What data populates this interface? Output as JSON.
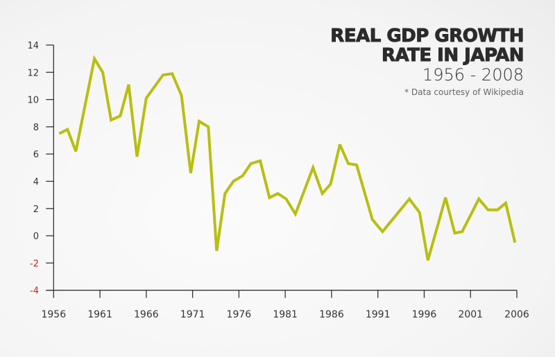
{
  "chart_data": {
    "type": "line",
    "title": "REAL GDP GROWTH RATE IN JAPAN",
    "title_lines": [
      "REAL GDP GROWTH",
      "RATE IN JAPAN"
    ],
    "subtitle": "1956 - 2008",
    "note": "* Data courtesy of Wikipedia",
    "xlabel": "",
    "ylabel": "",
    "xlim": [
      1956,
      2006
    ],
    "ylim": [
      -4,
      14
    ],
    "xticks": [
      1956,
      1961,
      1966,
      1971,
      1976,
      1981,
      1986,
      1991,
      1996,
      2001,
      2006
    ],
    "yticks": [
      14,
      12,
      10,
      8,
      6,
      4,
      2,
      0,
      -2,
      -4
    ],
    "grid": false,
    "colors": {
      "line": "#b7bf10",
      "axis": "#333333",
      "negative_label": "#c8202a",
      "label": "#333333"
    },
    "series": [
      {
        "name": "Real GDP growth rate (%)",
        "x": [
          1956.6,
          1957.5,
          1958.4,
          1960.4,
          1961.3,
          1962.2,
          1963.2,
          1964.1,
          1965.0,
          1966.0,
          1967.8,
          1968.8,
          1969.8,
          1970.8,
          1971.7,
          1972.7,
          1973.6,
          1974.5,
          1975.4,
          1976.4,
          1977.3,
          1978.3,
          1979.3,
          1980.2,
          1981.1,
          1982.1,
          1984.0,
          1985.0,
          1985.9,
          1986.9,
          1987.8,
          1988.7,
          1990.4,
          1991.5,
          1994.4,
          1995.5,
          1996.4,
          1998.3,
          1999.3,
          2000.1,
          2001.9,
          2002.9,
          2003.9,
          2004.8,
          2005.8
        ],
        "y": [
          7.5,
          7.8,
          6.2,
          13.0,
          12.0,
          8.5,
          8.8,
          11.1,
          5.8,
          10.1,
          11.8,
          11.9,
          10.3,
          4.6,
          8.4,
          8.0,
          -1.1,
          3.1,
          4.0,
          4.4,
          5.3,
          5.5,
          2.8,
          3.1,
          2.7,
          1.6,
          5.0,
          3.1,
          3.8,
          6.7,
          5.3,
          5.2,
          1.2,
          0.3,
          2.7,
          1.7,
          -1.8,
          2.8,
          0.2,
          0.3,
          2.7,
          1.9,
          1.9,
          2.4,
          -0.5
        ]
      }
    ]
  }
}
